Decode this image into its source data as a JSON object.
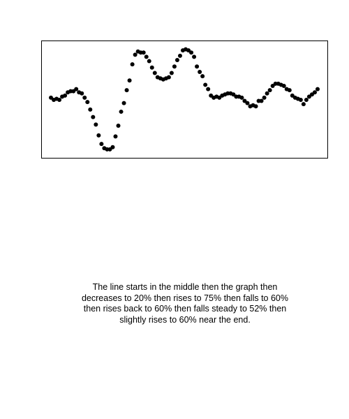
{
  "chart_data": {
    "type": "scatter",
    "title": "",
    "xlabel": "",
    "ylabel": "",
    "grid": false,
    "marker_color": "#000000",
    "x_range": [
      0,
      100
    ],
    "y_range": [
      0,
      100
    ],
    "series": [
      {
        "x": [
          0,
          1,
          2,
          3,
          4,
          5,
          6,
          7,
          8,
          9,
          10,
          11,
          12,
          13,
          14,
          15,
          16,
          17,
          18,
          19,
          20,
          21,
          22,
          23,
          24,
          25,
          26,
          27,
          28,
          29,
          30,
          31,
          32,
          33,
          34,
          35,
          36,
          37,
          38,
          39,
          40,
          41,
          42,
          43,
          44,
          45,
          46,
          47,
          48,
          49,
          50,
          51,
          52,
          53,
          54,
          55,
          56,
          57,
          58,
          59,
          60,
          61,
          62,
          63,
          64,
          65,
          66,
          67,
          68,
          69,
          70,
          71,
          72,
          73,
          74,
          75,
          76,
          77,
          78,
          79,
          80,
          81,
          82,
          83,
          84,
          85,
          86,
          87,
          88,
          89,
          90,
          91,
          92,
          93,
          94,
          95
        ],
        "y": [
          52,
          50,
          51,
          50,
          53,
          54,
          57,
          58,
          58,
          60,
          57,
          56,
          52,
          48,
          41,
          34,
          27,
          17,
          9,
          5,
          4,
          4,
          6,
          16,
          26,
          39,
          47,
          59,
          68,
          83,
          92,
          95,
          94,
          94,
          90,
          86,
          80,
          75,
          71,
          70,
          69,
          70,
          71,
          75,
          81,
          87,
          91,
          96,
          97,
          96,
          94,
          90,
          81,
          76,
          72,
          64,
          60,
          54,
          52,
          53,
          52,
          54,
          55,
          56,
          56,
          55,
          53,
          53,
          52,
          49,
          47,
          44,
          45,
          44,
          49,
          49,
          52,
          56,
          59,
          63,
          65,
          65,
          64,
          63,
          60,
          59,
          54,
          52,
          51,
          50,
          46,
          50,
          53,
          55,
          57,
          60
        ]
      }
    ],
    "caption": "The line starts in the middle then the graph then decreases to 20% then rises to 75% then falls to 60% then rises back to 60% then falls steady to 52% then slightly rises to 60% near the end."
  }
}
